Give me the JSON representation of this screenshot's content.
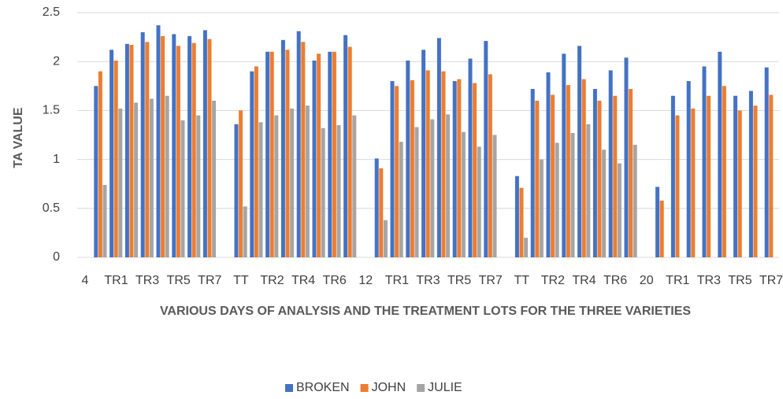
{
  "chart_data": {
    "type": "bar",
    "y_label": "TA VALUE",
    "x_label": "VARIOUS DAYS OF ANALYSIS AND THE TREATMENT LOTS FOR THE THREE VARIETIES",
    "categories": [
      "4",
      null,
      "TR1",
      null,
      "TR3",
      null,
      "TR5",
      null,
      "TR7",
      null,
      "TT",
      null,
      "TR2",
      null,
      "TR4",
      null,
      "TR6",
      null,
      "12",
      null,
      "TR1",
      null,
      "TR3",
      null,
      "TR5",
      null,
      "TR7",
      null,
      "TT",
      null,
      "TR2",
      null,
      "TR4",
      null,
      "TR6",
      null,
      "20",
      null,
      "TR1",
      null,
      "TR3",
      null,
      "TR5",
      null,
      "TR7"
    ],
    "series": [
      {
        "name": "BROKEN",
        "color": "#4472c4",
        "values": [
          null,
          1.75,
          2.12,
          2.18,
          2.3,
          2.37,
          2.28,
          2.26,
          2.32,
          null,
          1.36,
          1.9,
          2.1,
          2.22,
          2.31,
          2.01,
          2.1,
          2.27,
          null,
          1.01,
          1.8,
          2.01,
          2.12,
          2.24,
          1.8,
          2.03,
          2.21,
          null,
          0.83,
          1.72,
          1.89,
          2.08,
          2.16,
          1.72,
          1.91,
          2.04,
          null,
          0.72,
          1.65,
          1.8,
          1.95,
          2.1,
          1.65,
          1.7,
          1.94
        ]
      },
      {
        "name": "JOHN",
        "color": "#ed7d31",
        "values": [
          null,
          1.9,
          2.01,
          2.17,
          2.2,
          2.26,
          2.16,
          2.19,
          2.23,
          null,
          1.5,
          1.95,
          2.1,
          2.12,
          2.2,
          2.08,
          2.1,
          2.15,
          null,
          0.91,
          1.75,
          1.81,
          1.91,
          1.9,
          1.82,
          1.78,
          1.87,
          null,
          0.71,
          1.6,
          1.66,
          1.76,
          1.82,
          1.6,
          1.65,
          1.72,
          null,
          0.58,
          1.45,
          1.52,
          1.65,
          1.75,
          1.5,
          1.55,
          1.66
        ]
      },
      {
        "name": "JULIE",
        "color": "#a5a5a5",
        "values": [
          null,
          0.74,
          1.52,
          1.58,
          1.62,
          1.65,
          1.4,
          1.45,
          1.6,
          null,
          0.52,
          1.38,
          1.45,
          1.52,
          1.55,
          1.32,
          1.35,
          1.45,
          null,
          0.38,
          1.18,
          1.33,
          1.41,
          1.46,
          1.28,
          1.13,
          1.25,
          null,
          0.2,
          1.0,
          1.17,
          1.27,
          1.36,
          1.1,
          0.96,
          1.15,
          null,
          null,
          null,
          null,
          null,
          null,
          null,
          null,
          null
        ]
      }
    ],
    "ylim": [
      0,
      2.5
    ],
    "yticks": [
      0,
      0.5,
      1,
      1.5,
      2,
      2.5
    ],
    "grid": true,
    "legend": "bottom"
  }
}
